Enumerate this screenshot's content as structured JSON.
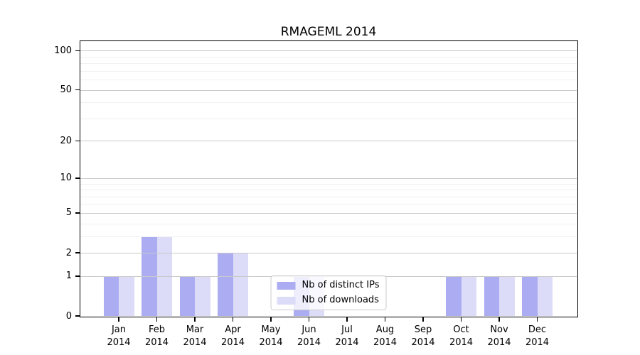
{
  "chart_data": {
    "type": "bar",
    "title": "RMAGEML 2014",
    "year": "2014",
    "months": [
      "Jan",
      "Feb",
      "Mar",
      "Apr",
      "May",
      "Jun",
      "Jul",
      "Aug",
      "Sep",
      "Oct",
      "Nov",
      "Dec"
    ],
    "categories": [
      "Jan 2014",
      "Feb 2014",
      "Mar 2014",
      "Apr 2014",
      "May 2014",
      "Jun 2014",
      "Jul 2014",
      "Aug 2014",
      "Sep 2014",
      "Oct 2014",
      "Nov 2014",
      "Dec 2014"
    ],
    "series": [
      {
        "name": "Nb of distinct IPs",
        "color": "#acacf2",
        "values": [
          1,
          3,
          1,
          2,
          0,
          1,
          0,
          0,
          0,
          1,
          1,
          1
        ]
      },
      {
        "name": "Nb of downloads",
        "color": "#dcdcf8",
        "values": [
          1,
          3,
          1,
          2,
          0,
          1,
          0,
          0,
          0,
          1,
          1,
          1
        ]
      }
    ],
    "y_axis": {
      "scale": "log1p",
      "major_ticks": [
        0,
        1,
        2,
        5,
        10,
        20,
        50,
        100
      ],
      "minor_ticks": [
        3,
        4,
        6,
        7,
        8,
        9,
        30,
        40,
        60,
        70,
        80,
        90
      ],
      "max": 118
    },
    "xlabel": "",
    "ylabel": "",
    "grid": "on",
    "grid_above_bars": true,
    "legend_position": "inside-bottom-center",
    "colors": {
      "major_grid": "#c9c9c9",
      "minor_grid": "#f0f0f0",
      "axis": "#000000",
      "background": "#ffffff"
    }
  }
}
